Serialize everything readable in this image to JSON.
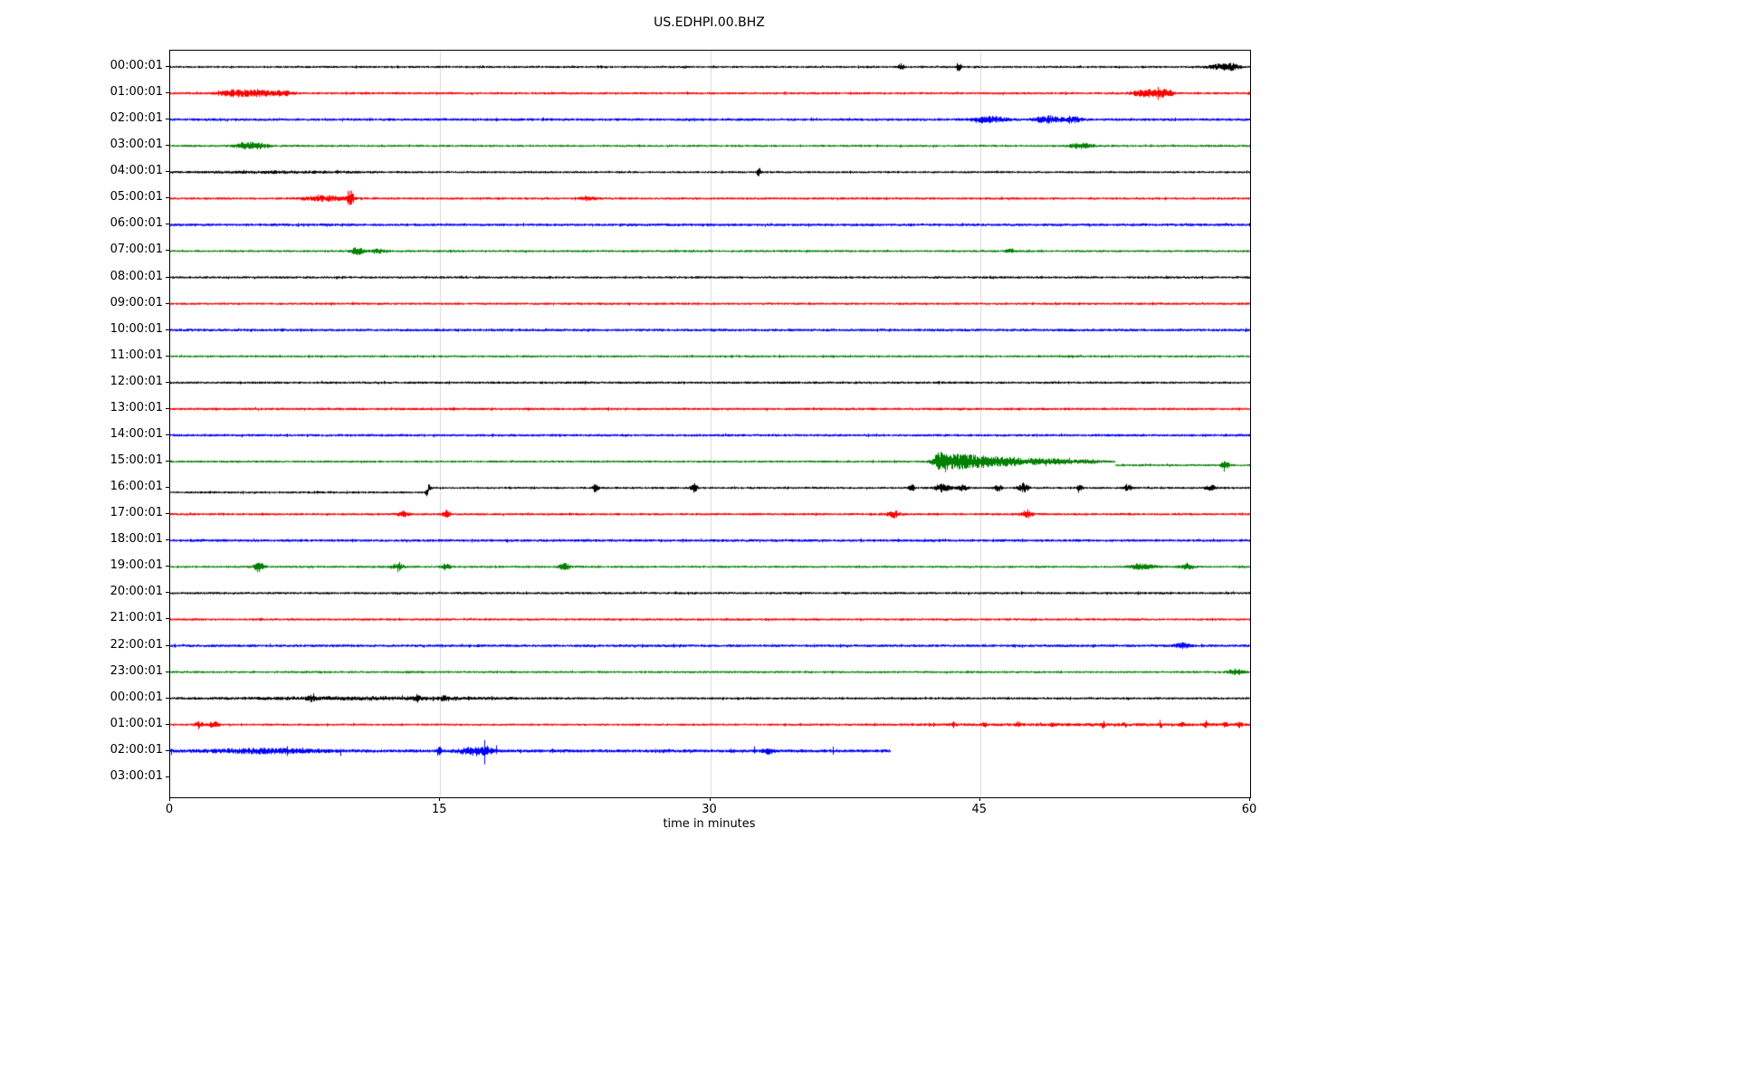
{
  "chart_data": {
    "type": "line",
    "subtype": "helicorder-seismogram",
    "title": "US.EDHPI.00.BHZ",
    "xlabel": "time in minutes",
    "x_range": [
      0,
      60
    ],
    "x_ticks": [
      0,
      15,
      30,
      45,
      60
    ],
    "grid_x": [
      15,
      30,
      45
    ],
    "grid_color": "#d9d9d9",
    "minutes_per_row": 60,
    "trace_colors_cycle": [
      "#000000",
      "#ff0000",
      "#0000ff",
      "#008000"
    ],
    "rows": [
      {
        "label": "00:00:01",
        "color": "#000000",
        "base_amp": 1.2,
        "events": [
          {
            "t": 40.6,
            "amp": 3,
            "w": 0.12
          },
          {
            "t": 43.8,
            "amp": 5,
            "w": 0.1
          },
          {
            "t": 58.3,
            "amp": 2.5,
            "w": 0.5
          },
          {
            "t": 59.0,
            "amp": 2.5,
            "w": 0.3
          }
        ]
      },
      {
        "label": "01:00:01",
        "color": "#ff0000",
        "base_amp": 1.3,
        "events": [
          {
            "t": 3.4,
            "amp": 3,
            "w": 0.5
          },
          {
            "t": 4.7,
            "amp": 3.5,
            "w": 0.6
          },
          {
            "t": 6.2,
            "amp": 2.5,
            "w": 0.4
          },
          {
            "t": 54.3,
            "amp": 3.5,
            "w": 0.6
          },
          {
            "t": 55.3,
            "amp": 3,
            "w": 0.3
          }
        ]
      },
      {
        "label": "02:00:01",
        "color": "#0000ff",
        "base_amp": 1.5,
        "events": [
          {
            "t": 45.5,
            "amp": 3,
            "w": 0.6
          },
          {
            "t": 48.8,
            "amp": 3.5,
            "w": 0.5
          },
          {
            "t": 50.2,
            "amp": 2.5,
            "w": 0.3
          }
        ]
      },
      {
        "label": "03:00:01",
        "color": "#008000",
        "base_amp": 1.2,
        "events": [
          {
            "t": 4.2,
            "amp": 3.5,
            "w": 0.4
          },
          {
            "t": 5.0,
            "amp": 2.5,
            "w": 0.3
          },
          {
            "t": 50.6,
            "amp": 3,
            "w": 0.4
          }
        ]
      },
      {
        "label": "04:00:01",
        "color": "#000000",
        "base_amp": 1.2,
        "events": [
          {
            "t": 6.0,
            "amp": 0.8,
            "w": 3
          },
          {
            "t": 32.7,
            "amp": 4,
            "w": 0.08
          }
        ]
      },
      {
        "label": "05:00:01",
        "color": "#ff0000",
        "base_amp": 1.3,
        "events": [
          {
            "t": 8.5,
            "amp": 2.5,
            "w": 0.8
          },
          {
            "t": 10.0,
            "amp": 9,
            "w": 0.12
          },
          {
            "t": 23.2,
            "amp": 2,
            "w": 0.3
          }
        ]
      },
      {
        "label": "06:00:01",
        "color": "#0000ff",
        "base_amp": 1.5,
        "events": []
      },
      {
        "label": "07:00:01",
        "color": "#008000",
        "base_amp": 1.2,
        "events": [
          {
            "t": 10.4,
            "amp": 3.5,
            "w": 0.25
          },
          {
            "t": 11.5,
            "amp": 2,
            "w": 0.3
          },
          {
            "t": 46.6,
            "amp": 2,
            "w": 0.15
          }
        ]
      },
      {
        "label": "08:00:01",
        "color": "#000000",
        "base_amp": 1.3,
        "events": []
      },
      {
        "label": "09:00:01",
        "color": "#ff0000",
        "base_amp": 1.3,
        "events": []
      },
      {
        "label": "10:00:01",
        "color": "#0000ff",
        "base_amp": 1.5,
        "events": []
      },
      {
        "label": "11:00:01",
        "color": "#008000",
        "base_amp": 1.2,
        "events": []
      },
      {
        "label": "12:00:01",
        "color": "#000000",
        "base_amp": 1.3,
        "events": []
      },
      {
        "label": "13:00:01",
        "color": "#ff0000",
        "base_amp": 1.4,
        "events": []
      },
      {
        "label": "14:00:01",
        "color": "#0000ff",
        "base_amp": 1.4,
        "events": []
      },
      {
        "label": "15:00:01",
        "color": "#008000",
        "base_amp": 1.2,
        "events": [
          {
            "t": 42.8,
            "amp": 10,
            "w": 0.3
          },
          {
            "t": 43.6,
            "amp": 6,
            "w": 0.5
          },
          {
            "t": 44.6,
            "amp": 5,
            "w": 0.6
          },
          {
            "t": 45.7,
            "amp": 4,
            "w": 0.6
          },
          {
            "t": 46.8,
            "amp": 3.5,
            "w": 0.5
          },
          {
            "t": 48.2,
            "amp": 3,
            "w": 0.5
          },
          {
            "t": 49.5,
            "amp": 2.5,
            "w": 0.5
          },
          {
            "t": 51.0,
            "amp": 2,
            "w": 0.5
          },
          {
            "t": 58.6,
            "amp": 4,
            "w": 0.15
          }
        ],
        "baseline_segments": [
          {
            "from": 52.5,
            "to": 60,
            "dy": 4
          }
        ]
      },
      {
        "label": "16:00:01",
        "color": "#000000",
        "base_amp": 1.2,
        "events": [
          {
            "t": 14.3,
            "amp": 4,
            "w": 0.1
          },
          {
            "t": 23.6,
            "amp": 4,
            "w": 0.12
          },
          {
            "t": 29.1,
            "amp": 5,
            "w": 0.12
          },
          {
            "t": 41.2,
            "amp": 3,
            "w": 0.12
          },
          {
            "t": 42.9,
            "amp": 4,
            "w": 0.3
          },
          {
            "t": 44.0,
            "amp": 3,
            "w": 0.2
          },
          {
            "t": 46.0,
            "amp": 3,
            "w": 0.15
          },
          {
            "t": 47.4,
            "amp": 5,
            "w": 0.18
          },
          {
            "t": 50.5,
            "amp": 2.5,
            "w": 0.12
          },
          {
            "t": 53.2,
            "amp": 3,
            "w": 0.15
          },
          {
            "t": 57.8,
            "amp": 2.5,
            "w": 0.2
          }
        ],
        "baseline_segments": [
          {
            "from": 0,
            "to": 14.3,
            "dy": 5
          }
        ]
      },
      {
        "label": "17:00:01",
        "color": "#ff0000",
        "base_amp": 1.3,
        "events": [
          {
            "t": 12.9,
            "amp": 3,
            "w": 0.2
          },
          {
            "t": 15.3,
            "amp": 4,
            "w": 0.12
          },
          {
            "t": 40.2,
            "amp": 3.5,
            "w": 0.25
          },
          {
            "t": 47.6,
            "amp": 4.5,
            "w": 0.2
          }
        ]
      },
      {
        "label": "18:00:01",
        "color": "#0000ff",
        "base_amp": 1.5,
        "events": []
      },
      {
        "label": "19:00:01",
        "color": "#008000",
        "base_amp": 1.2,
        "events": [
          {
            "t": 4.9,
            "amp": 5,
            "w": 0.2
          },
          {
            "t": 12.6,
            "amp": 3,
            "w": 0.25
          },
          {
            "t": 15.3,
            "amp": 3.5,
            "w": 0.15
          },
          {
            "t": 21.9,
            "amp": 3.5,
            "w": 0.2
          },
          {
            "t": 54.0,
            "amp": 2.5,
            "w": 0.5
          },
          {
            "t": 56.5,
            "amp": 2,
            "w": 0.3
          }
        ]
      },
      {
        "label": "20:00:01",
        "color": "#000000",
        "base_amp": 1.3,
        "events": []
      },
      {
        "label": "21:00:01",
        "color": "#ff0000",
        "base_amp": 1.3,
        "events": []
      },
      {
        "label": "22:00:01",
        "color": "#0000ff",
        "base_amp": 1.5,
        "events": [
          {
            "t": 56.2,
            "amp": 2.5,
            "w": 0.25
          }
        ]
      },
      {
        "label": "23:00:01",
        "color": "#008000",
        "base_amp": 1.2,
        "events": [
          {
            "t": 59.2,
            "amp": 3,
            "w": 0.3
          }
        ]
      },
      {
        "label": "00:00:01",
        "color": "#000000",
        "base_amp": 1.3,
        "events": [
          {
            "t": 11.0,
            "amp": 1.2,
            "w": 5
          },
          {
            "t": 7.8,
            "amp": 2,
            "w": 0.15
          },
          {
            "t": 13.7,
            "amp": 3.5,
            "w": 0.12
          },
          {
            "t": 15.2,
            "amp": 3,
            "w": 0.1
          }
        ]
      },
      {
        "label": "01:00:01",
        "color": "#ff0000",
        "base_amp": 1.2,
        "events": [
          {
            "t": 1.6,
            "amp": 3,
            "w": 0.2
          },
          {
            "t": 2.4,
            "amp": 3,
            "w": 0.2
          },
          {
            "t": 43.5,
            "amp": 2.5,
            "w": 0.08
          },
          {
            "t": 45.2,
            "amp": 2,
            "w": 0.08
          },
          {
            "t": 47.1,
            "amp": 2.5,
            "w": 0.08
          },
          {
            "t": 49.0,
            "amp": 2,
            "w": 0.08
          },
          {
            "t": 51.8,
            "amp": 3,
            "w": 0.08
          },
          {
            "t": 53.0,
            "amp": 2,
            "w": 0.08
          },
          {
            "t": 55.0,
            "amp": 2.5,
            "w": 0.08
          },
          {
            "t": 56.2,
            "amp": 2,
            "w": 0.08
          },
          {
            "t": 57.5,
            "amp": 2.5,
            "w": 0.08
          },
          {
            "t": 58.6,
            "amp": 2.5,
            "w": 0.08
          },
          {
            "t": 59.4,
            "amp": 3,
            "w": 0.1
          },
          {
            "t": 51.0,
            "amp": 0.6,
            "w": 8
          }
        ]
      },
      {
        "label": "02:00:01",
        "color": "#0000ff",
        "base_amp": 1.8,
        "spiky": true,
        "end": 40,
        "events": [
          {
            "t": 5.2,
            "amp": 2,
            "w": 2
          },
          {
            "t": 14.9,
            "amp": 5,
            "w": 0.08
          },
          {
            "t": 16.8,
            "amp": 4,
            "w": 0.5
          },
          {
            "t": 17.5,
            "amp": 3,
            "w": 0.3
          },
          {
            "t": 33.2,
            "amp": 3,
            "w": 0.2
          }
        ]
      },
      {
        "label": "03:00:01",
        "color": "#008000",
        "base_amp": 0,
        "no_data": true,
        "events": []
      }
    ]
  }
}
